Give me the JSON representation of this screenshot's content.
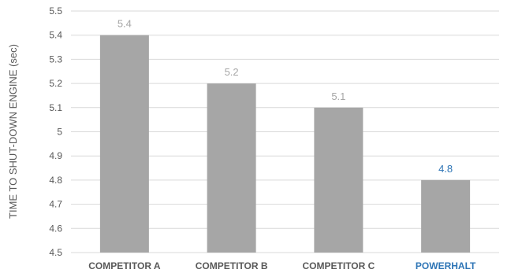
{
  "chart_data": {
    "type": "bar",
    "title": "",
    "xlabel": "",
    "ylabel": "TIME TO SHUT-DOWN ENGINE (sec)",
    "categories": [
      "COMPETITOR A",
      "COMPETITOR B",
      "COMPETITOR C",
      "POWERHALT"
    ],
    "values": [
      5.4,
      5.2,
      5.1,
      4.8
    ],
    "value_labels": [
      "5.4",
      "5.2",
      "5.1",
      "4.8"
    ],
    "ylim": [
      4.5,
      5.5
    ],
    "yticks": [
      4.5,
      4.6,
      4.7,
      4.8,
      4.9,
      5.0,
      5.1,
      5.2,
      5.3,
      5.4,
      5.5
    ],
    "ytick_labels": [
      "4.5",
      "4.6",
      "4.7",
      "4.8",
      "4.9",
      "5",
      "5.1",
      "5.2",
      "5.3",
      "5.4",
      "5.5"
    ],
    "grid": true,
    "legend": "none",
    "colors": {
      "bar": "#a6a6a6",
      "highlight_text": "#2e75b6",
      "label_text": "#595959",
      "value_text": "#a6a6a6",
      "grid": "#d9d9d9"
    },
    "highlight_category": "POWERHALT"
  }
}
